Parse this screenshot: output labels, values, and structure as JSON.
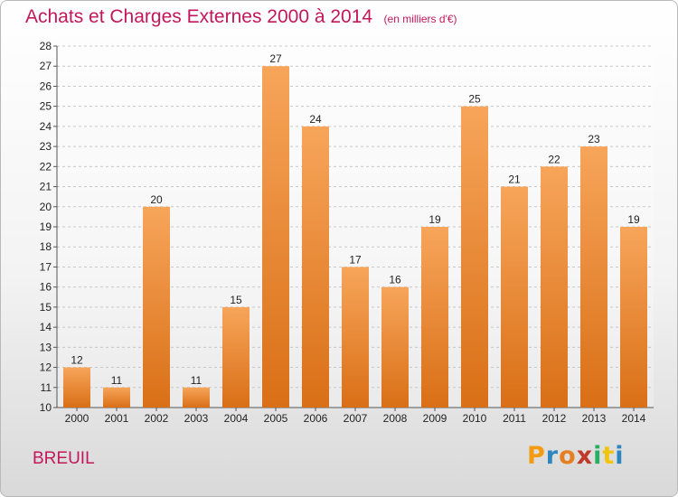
{
  "header": {
    "title": "Achats et Charges Externes 2000 à 2014",
    "unit": "(en milliers d'€)"
  },
  "commune": "BREUIL",
  "logo": {
    "letters": [
      "P",
      "r",
      "o",
      "x",
      "i",
      "t",
      "i"
    ],
    "colors": [
      "#f39c12",
      "#2e86c1",
      "#e67e22",
      "#c0392b",
      "#27ae60",
      "#f1c40f",
      "#2e86c1"
    ]
  },
  "colors": {
    "title": "#c2185b",
    "bar_top": "#f7a55a",
    "bar_bottom": "#d96f16"
  },
  "chart_data": {
    "type": "bar",
    "title": "Achats et Charges Externes 2000 à 2014",
    "categories": [
      "2000",
      "2001",
      "2002",
      "2003",
      "2004",
      "2005",
      "2006",
      "2007",
      "2008",
      "2009",
      "2010",
      "2011",
      "2012",
      "2013",
      "2014"
    ],
    "values": [
      12,
      11,
      20,
      11,
      15,
      27,
      24,
      17,
      16,
      19,
      25,
      21,
      22,
      23,
      19
    ],
    "ylim": [
      10,
      28
    ],
    "yticks": [
      10,
      11,
      12,
      13,
      14,
      15,
      16,
      17,
      18,
      19,
      20,
      21,
      22,
      23,
      24,
      25,
      26,
      27,
      28
    ],
    "grid": true,
    "xlabel": "",
    "ylabel": ""
  }
}
